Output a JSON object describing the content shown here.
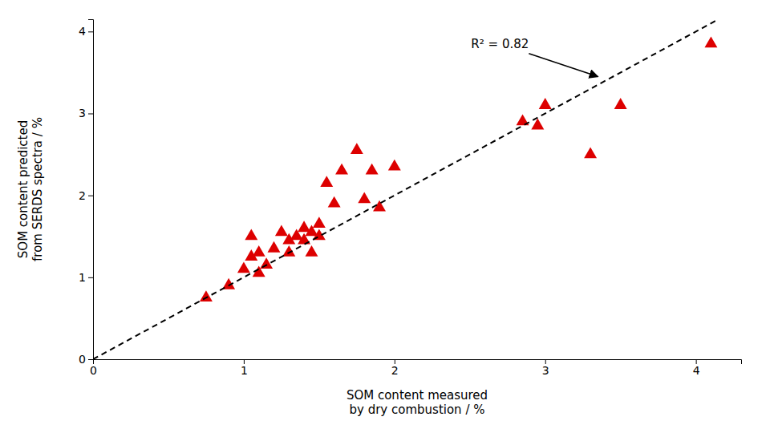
{
  "chart_data": {
    "type": "scatter",
    "xlabel": "SOM content measured\nby dry combustion / %",
    "ylabel": "SOM content predicted\nfrom SERDS spectra / %",
    "series": [
      {
        "type": "scatter",
        "marker": "triangle",
        "color": "#dd0000",
        "x": [
          0.75,
          0.9,
          1.0,
          1.05,
          1.05,
          1.1,
          1.1,
          1.15,
          1.2,
          1.25,
          1.3,
          1.3,
          1.35,
          1.4,
          1.4,
          1.45,
          1.45,
          1.5,
          1.5,
          1.55,
          1.6,
          1.65,
          1.75,
          1.8,
          1.85,
          1.9,
          2.0,
          2.85,
          2.95,
          3.0,
          3.3,
          3.5,
          4.1
        ],
        "values": [
          0.75,
          0.9,
          1.1,
          1.25,
          1.5,
          1.05,
          1.3,
          1.15,
          1.35,
          1.55,
          1.3,
          1.45,
          1.5,
          1.45,
          1.6,
          1.3,
          1.55,
          1.5,
          1.65,
          2.15,
          1.9,
          2.3,
          2.55,
          1.95,
          2.3,
          1.85,
          2.35,
          2.9,
          2.85,
          3.1,
          2.5,
          3.1,
          3.85
        ]
      },
      {
        "type": "line",
        "line_style": "dashed",
        "color": "#000000",
        "x": [
          0,
          4.15
        ],
        "values": [
          0,
          4.15
        ]
      }
    ],
    "annotations": [
      {
        "text": "R² = 0.82",
        "xy": [
          3.35,
          3.45
        ],
        "xytext": [
          2.7,
          3.8
        ],
        "color": "#000000"
      }
    ],
    "xlim": [
      0,
      4.3
    ],
    "ylim": [
      0,
      4.15
    ],
    "xticks": [
      0,
      1,
      2,
      3,
      4
    ],
    "yticks": [
      0,
      1,
      2,
      3,
      4
    ],
    "grid": false
  }
}
